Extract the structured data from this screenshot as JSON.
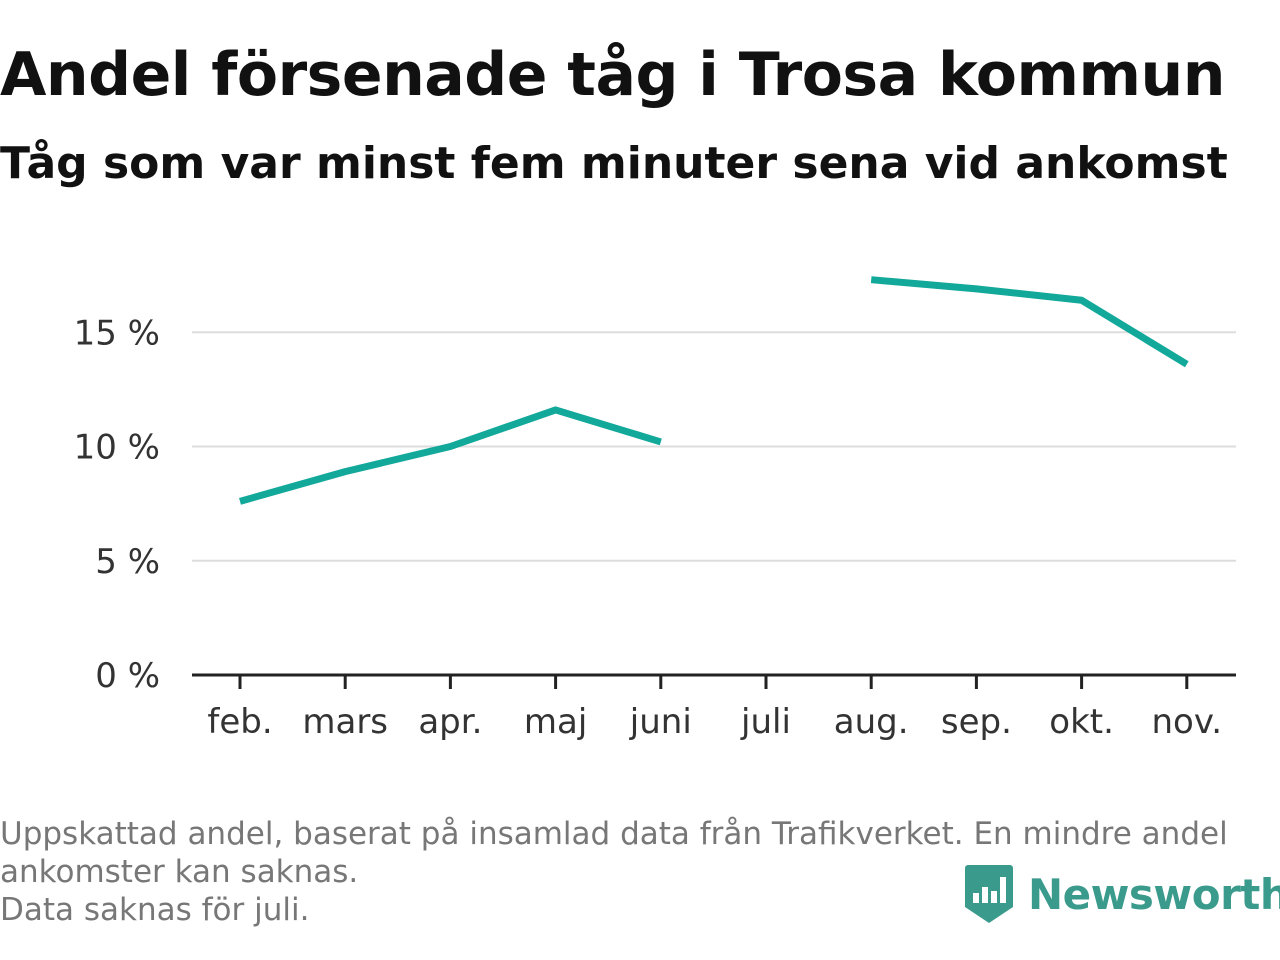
{
  "header": {
    "title": "Andel försenade tåg i Trosa kommun",
    "subtitle": "Tåg som var minst fem minuter sena vid ankomst"
  },
  "footer": {
    "lines": [
      "Uppskattad andel, baserat på insamlad data från Trafikverket. En mindre andel",
      "ankomster kan saknas.",
      "Data saknas för juli."
    ]
  },
  "brand": {
    "name": "Newsworthy",
    "icon": "newsworthy-logo-icon",
    "color": "#3a9a8c"
  },
  "chart_data": {
    "type": "line",
    "categories": [
      "feb.",
      "mars",
      "apr.",
      "maj",
      "juni",
      "juli",
      "aug.",
      "sep.",
      "okt.",
      "nov."
    ],
    "series": [
      {
        "values": [
          7.6,
          8.9,
          10.0,
          11.6,
          10.2,
          null,
          17.3,
          16.9,
          16.4,
          13.6
        ],
        "color": "#12a89a"
      }
    ],
    "yticks": [
      0,
      5,
      10,
      15
    ],
    "ytick_labels": [
      "0 %",
      "5 %",
      "10 %",
      "15 %"
    ],
    "ylim": [
      0,
      20
    ],
    "grid": true,
    "legend": "none"
  }
}
